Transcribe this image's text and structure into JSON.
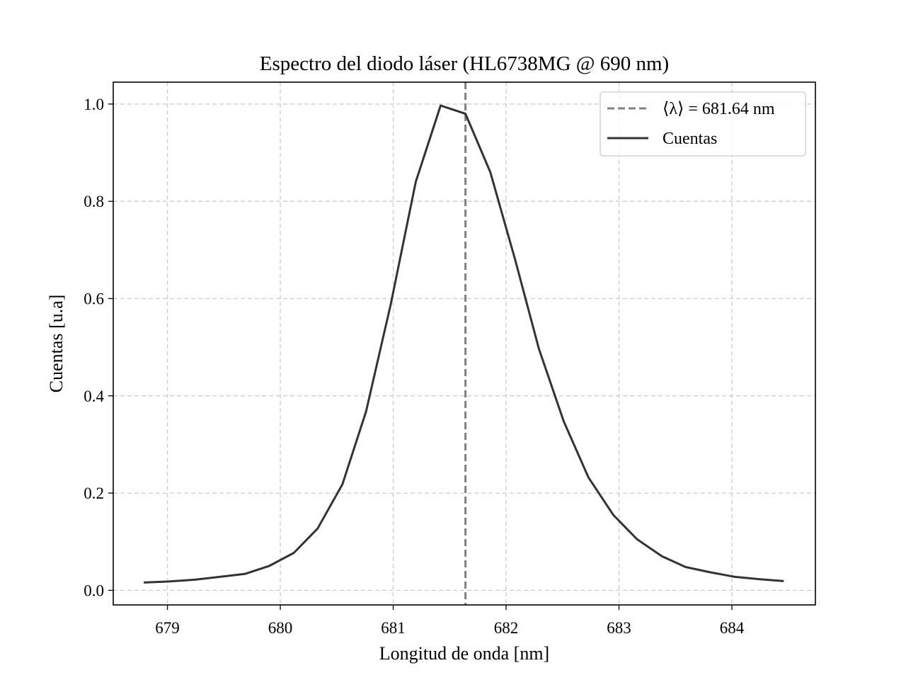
{
  "chart_data": {
    "type": "line",
    "title": "Espectro del diodo láser (HL6738MG @ 690 nm)",
    "xlabel": "Longitud de onda [nm]",
    "ylabel": "Cuentas [u.a]",
    "xlim": [
      678.52,
      684.74
    ],
    "ylim": [
      -0.03,
      1.045
    ],
    "xticks": [
      679,
      680,
      681,
      682,
      683,
      684
    ],
    "yticks": [
      0.0,
      0.2,
      0.4,
      0.6,
      0.8,
      1.0
    ],
    "xtick_labels": [
      "679",
      "680",
      "681",
      "682",
      "683",
      "684"
    ],
    "ytick_labels": [
      "0.0",
      "0.2",
      "0.4",
      "0.6",
      "0.8",
      "1.0"
    ],
    "grid": true,
    "legend_position": "top-right",
    "series": [
      {
        "name": "Cuentas",
        "color": "#333333",
        "style": "solid",
        "x": [
          678.79,
          679.0,
          679.25,
          679.47,
          679.69,
          679.9,
          680.12,
          680.33,
          680.55,
          680.76,
          680.98,
          681.2,
          681.42,
          681.64,
          681.86,
          682.08,
          682.29,
          682.51,
          682.73,
          682.95,
          683.16,
          683.38,
          683.59,
          683.81,
          684.02,
          684.24,
          684.46
        ],
        "y": [
          0.016,
          0.018,
          0.022,
          0.028,
          0.034,
          0.05,
          0.077,
          0.127,
          0.218,
          0.368,
          0.59,
          0.84,
          0.997,
          0.98,
          0.86,
          0.68,
          0.497,
          0.348,
          0.232,
          0.155,
          0.105,
          0.07,
          0.048,
          0.037,
          0.028,
          0.023,
          0.019
        ]
      }
    ],
    "reference_lines": [
      {
        "label": "⟨λ⟩ = 681.64 nm",
        "orientation": "vertical",
        "x": 681.64,
        "color": "#808080",
        "style": "dashed"
      }
    ],
    "legend_order": [
      "reference",
      "series"
    ]
  }
}
